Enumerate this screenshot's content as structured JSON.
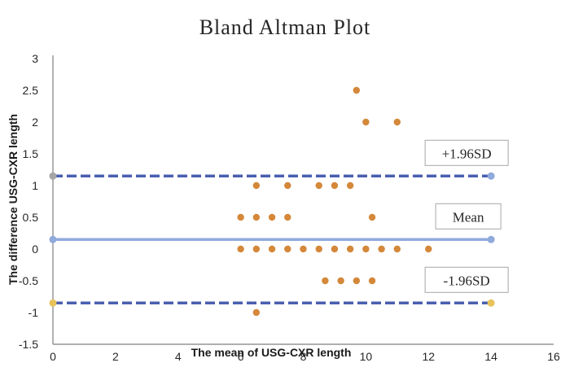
{
  "chart_data": {
    "type": "scatter",
    "title": "Bland Altman Plot",
    "xlabel": "The mean of USG-CXR length",
    "ylabel": "The difference USG-CXR length",
    "xlim": [
      0,
      16
    ],
    "ylim": [
      -1.5,
      3
    ],
    "x_ticks": [
      "0",
      "2",
      "4",
      "6",
      "8",
      "10",
      "12",
      "14",
      "16"
    ],
    "y_ticks": [
      "-1.5",
      "-1",
      "-0.5",
      "0",
      "0.5",
      "1",
      "1.5",
      "2",
      "2.5",
      "3"
    ],
    "grid": false,
    "legend": "none",
    "points": [
      {
        "x": 9.7,
        "y": 2.5
      },
      {
        "x": 10,
        "y": 2
      },
      {
        "x": 11,
        "y": 2
      },
      {
        "x": 6.5,
        "y": 1
      },
      {
        "x": 7.5,
        "y": 1
      },
      {
        "x": 8.5,
        "y": 1
      },
      {
        "x": 9,
        "y": 1
      },
      {
        "x": 9.5,
        "y": 1
      },
      {
        "x": 6,
        "y": 0.5
      },
      {
        "x": 6.5,
        "y": 0.5
      },
      {
        "x": 7,
        "y": 0.5
      },
      {
        "x": 7.5,
        "y": 0.5
      },
      {
        "x": 10.2,
        "y": 0.5
      },
      {
        "x": 6,
        "y": 0
      },
      {
        "x": 6.5,
        "y": 0
      },
      {
        "x": 7,
        "y": 0
      },
      {
        "x": 7.5,
        "y": 0
      },
      {
        "x": 8,
        "y": 0
      },
      {
        "x": 8.5,
        "y": 0
      },
      {
        "x": 9,
        "y": 0
      },
      {
        "x": 9.5,
        "y": 0
      },
      {
        "x": 10,
        "y": 0
      },
      {
        "x": 10.5,
        "y": 0
      },
      {
        "x": 11,
        "y": 0
      },
      {
        "x": 12,
        "y": 0
      },
      {
        "x": 8.7,
        "y": -0.5
      },
      {
        "x": 9.2,
        "y": -0.5
      },
      {
        "x": 9.7,
        "y": -0.5
      },
      {
        "x": 10.2,
        "y": -0.5
      },
      {
        "x": 6.5,
        "y": -1
      }
    ],
    "reference_lines": [
      {
        "label": "+1.96SD",
        "y": 1.15,
        "x_start": 0,
        "x_end": 14,
        "style": "dashed",
        "color": "#4a5fb0",
        "endpoint_colors": [
          "#a6a6a6",
          "#8faadc"
        ]
      },
      {
        "label": "Mean",
        "y": 0.15,
        "x_start": 0,
        "x_end": 14,
        "style": "solid",
        "color": "#8faadc",
        "endpoint_colors": [
          "#8faadc",
          "#8faadc"
        ]
      },
      {
        "label": "-1.96SD",
        "y": -0.85,
        "x_start": 0,
        "x_end": 14,
        "style": "dashed",
        "color": "#4a5fb0",
        "endpoint_colors": [
          "#e8c35a",
          "#e8c35a"
        ]
      }
    ],
    "point_color": "#d4883a"
  }
}
